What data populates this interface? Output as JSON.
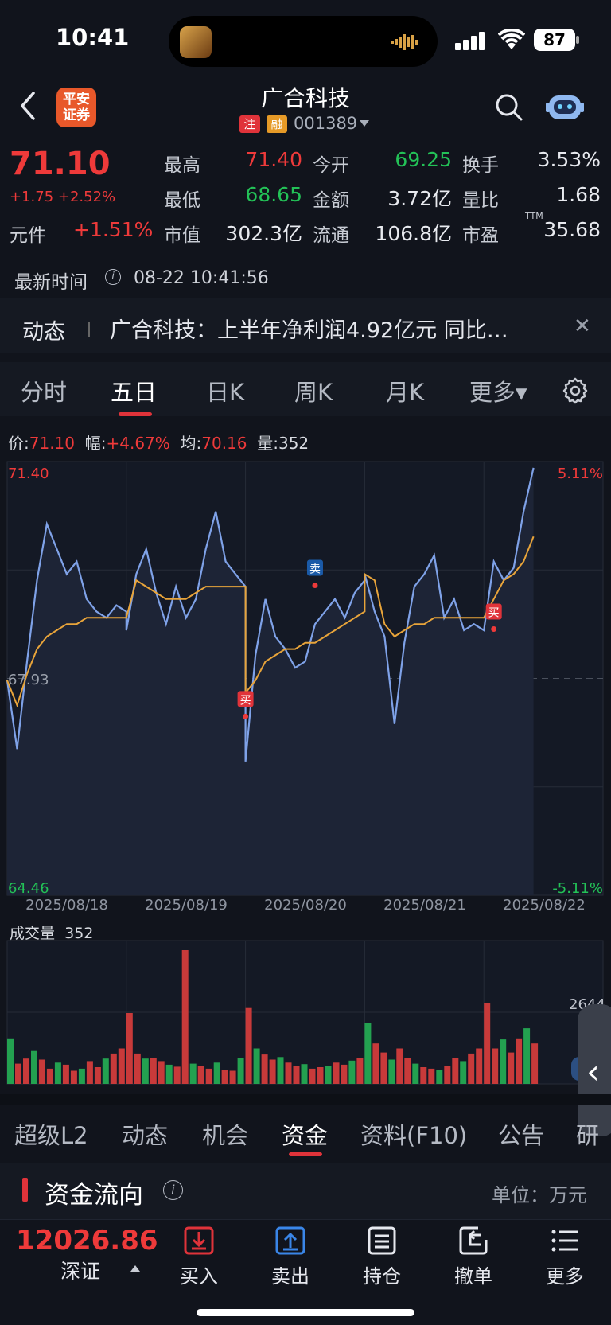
{
  "status": {
    "time": "10:41",
    "battery": "87"
  },
  "header": {
    "broker_logo": "平安\n证券",
    "stock_name": "广合科技",
    "badge_zhu": "注",
    "badge_rong": "融",
    "stock_code": "001389",
    "icons": [
      "back-icon",
      "search-icon",
      "robot-assistant-icon"
    ]
  },
  "quote": {
    "price": "71.10",
    "change": "+1.75 +2.52%",
    "unit_label": "元件",
    "unit_value": "+1.51%",
    "stats": [
      {
        "label": "最高",
        "value": "71.40",
        "color": "red"
      },
      {
        "label": "今开",
        "value": "69.25",
        "color": "green"
      },
      {
        "label": "换手",
        "value": "3.53%",
        "color": "white"
      },
      {
        "label": "最低",
        "value": "68.65",
        "color": "green"
      },
      {
        "label": "金额",
        "value": "3.72亿",
        "color": "white"
      },
      {
        "label": "量比",
        "value": "1.68",
        "color": "white"
      },
      {
        "label": "市值",
        "value": "302.3亿",
        "color": "white"
      },
      {
        "label": "流通",
        "value": "106.8亿",
        "color": "white"
      },
      {
        "label": "市盈",
        "value": "35.68",
        "color": "white"
      }
    ],
    "pe_suffix": "TTM",
    "update_label": "最新时间",
    "update_time": "08-22 10:41:56"
  },
  "news": {
    "tag": "动态",
    "text": "广合科技：上半年净利润4.92亿元 同比…",
    "close": "✕"
  },
  "period_tabs": [
    {
      "label": "分时",
      "active": false
    },
    {
      "label": "五日",
      "active": true
    },
    {
      "label": "日K",
      "active": false
    },
    {
      "label": "周K",
      "active": false
    },
    {
      "label": "月K",
      "active": false
    },
    {
      "label": "更多▾",
      "active": false
    }
  ],
  "chart_info": {
    "price_label": "价:",
    "price": "71.10",
    "amp_label": "幅:",
    "amp": "+4.67%",
    "avg_label": "均:",
    "avg": "70.16",
    "vol_label": "量:",
    "vol": "352"
  },
  "chart_data": {
    "type": "line",
    "y_axis_left": {
      "top": "71.40",
      "mid": "67.93",
      "bottom": "64.46"
    },
    "y_axis_right": {
      "top": "5.11%",
      "bottom": "-5.11%"
    },
    "ylim": [
      64.46,
      71.4
    ],
    "reference": 67.93,
    "x_labels": [
      "2025/08/18",
      "2025/08/19",
      "2025/08/20",
      "2025/08/21",
      "2025/08/22"
    ],
    "series": [
      {
        "color": "#7fa2e8",
        "values": [
          [
            67.9,
            66.8,
            68.2,
            69.5,
            70.4,
            70.0,
            69.6,
            69.8,
            69.2,
            69.0,
            68.9,
            69.1,
            69.0
          ],
          [
            68.7,
            69.6,
            70.0,
            69.3,
            68.8,
            69.4,
            68.9,
            69.2,
            70.0,
            70.6,
            69.8,
            69.6,
            69.4
          ],
          [
            66.6,
            68.3,
            69.2,
            68.6,
            68.4,
            68.1,
            68.2,
            68.8,
            69.0,
            69.2,
            68.9,
            69.3,
            69.5
          ],
          [
            69.6,
            69.0,
            68.6,
            67.2,
            68.5,
            69.4,
            69.6,
            69.9,
            68.9,
            69.2,
            68.7,
            68.8,
            68.7
          ],
          [
            68.7,
            69.8,
            69.5,
            69.7,
            70.6,
            71.3
          ]
        ]
      },
      {
        "color": "#e8a43a",
        "values": [
          [
            67.9,
            67.5,
            68.0,
            68.4,
            68.6,
            68.7,
            68.8,
            68.8,
            68.9,
            68.9,
            68.9,
            68.9,
            68.9
          ],
          [
            68.9,
            69.5,
            69.4,
            69.3,
            69.2,
            69.2,
            69.2,
            69.3,
            69.4,
            69.4,
            69.4,
            69.4,
            69.4
          ],
          [
            67.7,
            67.9,
            68.2,
            68.3,
            68.4,
            68.4,
            68.5,
            68.5,
            68.6,
            68.7,
            68.8,
            68.9,
            69.0
          ],
          [
            69.6,
            69.5,
            68.8,
            68.6,
            68.7,
            68.8,
            68.8,
            68.9,
            68.9,
            68.9,
            68.9,
            68.9,
            68.9
          ],
          [
            68.9,
            69.2,
            69.5,
            69.6,
            69.8,
            70.2
          ]
        ]
      }
    ],
    "markers": [
      {
        "label": "买",
        "day": 2,
        "index": 0,
        "price": 67.6,
        "color": "#e0333a"
      },
      {
        "label": "卖",
        "day": 2,
        "index": 7,
        "price": 69.7,
        "color": "#1a5aa8"
      },
      {
        "label": "买",
        "day": 4,
        "index": 1,
        "price": 69.0,
        "color": "#e0333a"
      }
    ],
    "volume": {
      "title": "成交量",
      "value": "352",
      "max_label": "2644",
      "bars_per_day": [
        [
          900,
          400,
          500,
          650,
          480,
          300,
          420,
          380,
          260,
          300,
          450,
          330,
          500,
          600,
          700
        ],
        [
          1400,
          600,
          500,
          520,
          450,
          380,
          340,
          2644,
          400,
          360,
          300,
          420,
          280,
          260,
          520
        ],
        [
          1500,
          700,
          580,
          480,
          530,
          420,
          350,
          390,
          300,
          330,
          360,
          420,
          380,
          460,
          520
        ],
        [
          1200,
          800,
          620,
          480,
          700,
          520,
          400,
          330,
          300,
          280,
          360,
          520,
          450,
          600,
          700
        ],
        [
          1600,
          700,
          880,
          620,
          900,
          1100,
          800
        ]
      ]
    }
  },
  "bottom_tabs": [
    {
      "label": "超级L2",
      "active": false
    },
    {
      "label": "动态",
      "active": false
    },
    {
      "label": "机会",
      "active": false
    },
    {
      "label": "资金",
      "active": true
    },
    {
      "label": "资料(F10)",
      "active": false
    },
    {
      "label": "公告",
      "active": false
    },
    {
      "label": "研",
      "active": false
    }
  ],
  "fund_flow": {
    "title": "资金流向",
    "unit": "单位：万元"
  },
  "toolbar": {
    "index_value": "12026.86",
    "index_name": "深证",
    "items": [
      {
        "label": "买入",
        "icon": "download-tray-icon",
        "color": "#e0333a"
      },
      {
        "label": "卖出",
        "icon": "upload-tray-icon",
        "color": "#3a86e8"
      },
      {
        "label": "持仓",
        "icon": "document-list-icon",
        "color": "#e6e8ee"
      },
      {
        "label": "撤单",
        "icon": "return-arrow-icon",
        "color": "#e6e8ee"
      },
      {
        "label": "更多",
        "icon": "menu-lines-icon",
        "color": "#e6e8ee"
      }
    ]
  }
}
